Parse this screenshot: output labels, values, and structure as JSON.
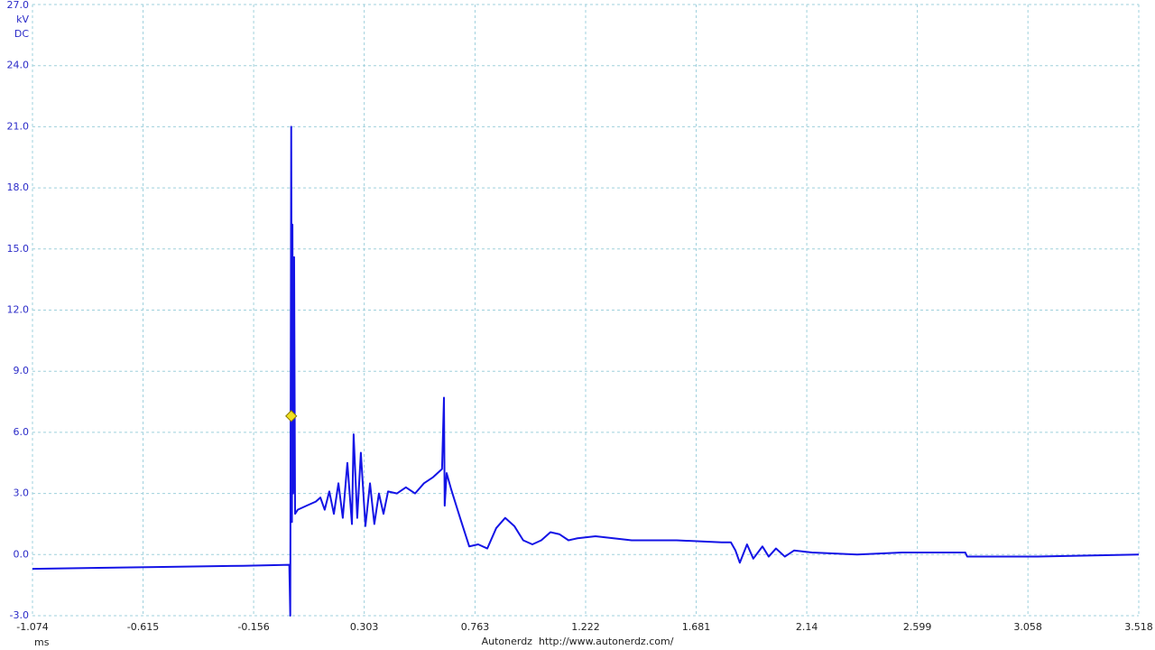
{
  "chart_data": {
    "type": "line",
    "y_unit": "kV",
    "coupling": "DC",
    "x_label": "ms",
    "footer": "Autonerdz  http://www.autonerdz.com/",
    "color": "#1414e6",
    "grid": true,
    "xlim": [
      -1.074,
      3.518
    ],
    "ylim": [
      -3.0,
      27.0
    ],
    "xticks": [
      -1.074,
      -0.615,
      -0.156,
      0.303,
      0.763,
      1.222,
      1.681,
      2.14,
      2.599,
      3.058,
      3.518
    ],
    "yticks": [
      {
        "value": -3.0,
        "label": "-3.0"
      },
      {
        "value": 0.0,
        "label": "0.0"
      },
      {
        "value": 3.0,
        "label": "3.0"
      },
      {
        "value": 6.0,
        "label": "6.0"
      },
      {
        "value": 9.0,
        "label": "9.0"
      },
      {
        "value": 12.0,
        "label": "12.0"
      },
      {
        "value": 15.0,
        "label": "15.0"
      },
      {
        "value": 18.0,
        "label": "18.0"
      },
      {
        "value": 21.0,
        "label": "21.0"
      },
      {
        "value": 24.0,
        "label": "24.0"
      },
      {
        "value": 27.0,
        "label": "27.0"
      }
    ],
    "x": [
      -1.074,
      -0.8,
      -0.5,
      -0.2,
      -0.008,
      -0.004,
      0.0,
      0.003,
      0.005,
      0.008,
      0.012,
      0.016,
      0.027,
      0.064,
      0.102,
      0.121,
      0.139,
      0.158,
      0.177,
      0.196,
      0.214,
      0.233,
      0.252,
      0.259,
      0.274,
      0.289,
      0.308,
      0.327,
      0.345,
      0.364,
      0.383,
      0.402,
      0.439,
      0.476,
      0.514,
      0.551,
      0.589,
      0.626,
      0.634,
      0.637,
      0.645,
      0.664,
      0.701,
      0.739,
      0.776,
      0.814,
      0.851,
      0.888,
      0.926,
      0.963,
      1.001,
      1.038,
      1.076,
      1.113,
      1.151,
      1.188,
      1.263,
      1.413,
      1.6,
      1.787,
      1.825,
      1.844,
      1.862,
      1.892,
      1.918,
      1.956,
      1.982,
      2.012,
      2.049,
      2.087,
      2.162,
      2.349,
      2.536,
      2.798,
      2.806,
      3.098,
      3.518
    ],
    "values": [
      -0.7,
      -0.65,
      -0.6,
      -0.55,
      -0.5,
      -3.0,
      21.0,
      1.6,
      16.2,
      3.0,
      14.6,
      2.0,
      2.2,
      2.4,
      2.6,
      2.8,
      2.2,
      3.1,
      2.0,
      3.5,
      1.8,
      4.5,
      1.5,
      5.9,
      1.8,
      5.0,
      1.4,
      3.5,
      1.5,
      3.0,
      2.0,
      3.1,
      3.0,
      3.3,
      3.0,
      3.5,
      3.8,
      4.2,
      7.7,
      2.4,
      4.0,
      3.2,
      1.8,
      0.4,
      0.5,
      0.3,
      1.3,
      1.8,
      1.4,
      0.7,
      0.5,
      0.7,
      1.1,
      1.0,
      0.7,
      0.8,
      0.9,
      0.7,
      0.7,
      0.6,
      0.6,
      0.2,
      -0.4,
      0.5,
      -0.2,
      0.4,
      -0.1,
      0.3,
      -0.1,
      0.2,
      0.1,
      0.0,
      0.1,
      0.1,
      -0.1,
      -0.1,
      0.0
    ],
    "trigger": {
      "x": 0.0,
      "y": 6.8,
      "color": "#f0e020"
    }
  }
}
